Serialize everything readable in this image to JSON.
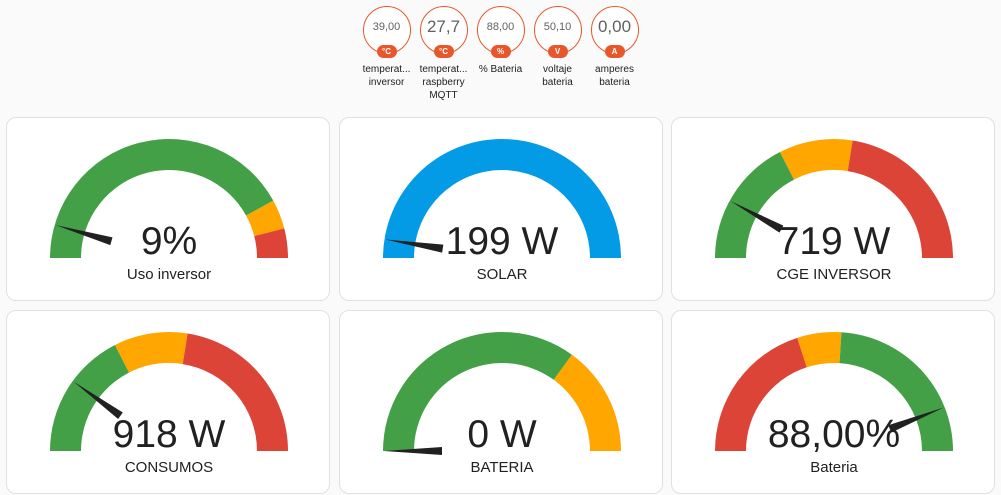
{
  "badges": [
    {
      "value": "39,00",
      "unit": "°C",
      "label": "temperat... inversor",
      "big": false
    },
    {
      "value": "27,7",
      "unit": "°C",
      "label": "temperat... raspberry MQTT",
      "big": true
    },
    {
      "value": "88,00",
      "unit": "%",
      "label": "% Bateria",
      "big": false
    },
    {
      "value": "50,10",
      "unit": "V",
      "label": "voltaje bateria",
      "big": false
    },
    {
      "value": "0,00",
      "unit": "A",
      "label": "amperes bateria",
      "big": true
    }
  ],
  "colors": {
    "green": "#43a047",
    "orange": "#ffa600",
    "red": "#db4437",
    "blue": "#039be5",
    "needle": "#212121",
    "badge_accent": "#e8572c"
  },
  "gauges": [
    {
      "value_text": "9%",
      "name": "Uso inversor",
      "fraction": 0.09,
      "segments": [
        {
          "from": 0,
          "to": 0.84,
          "color": "green"
        },
        {
          "from": 0.84,
          "to": 0.92,
          "color": "orange"
        },
        {
          "from": 0.92,
          "to": 1,
          "color": "red"
        }
      ]
    },
    {
      "value_text": "199 W",
      "name": "SOLAR",
      "fraction": 0.05,
      "segments": [
        {
          "from": 0,
          "to": 1,
          "color": "blue"
        }
      ]
    },
    {
      "value_text": "719 W",
      "name": "CGE INVERSOR",
      "fraction": 0.16,
      "segments": [
        {
          "from": 0,
          "to": 0.35,
          "color": "green"
        },
        {
          "from": 0.35,
          "to": 0.55,
          "color": "orange"
        },
        {
          "from": 0.55,
          "to": 1,
          "color": "red"
        }
      ]
    },
    {
      "value_text": "918 W",
      "name": "CONSUMOS",
      "fraction": 0.2,
      "segments": [
        {
          "from": 0,
          "to": 0.35,
          "color": "green"
        },
        {
          "from": 0.35,
          "to": 0.55,
          "color": "orange"
        },
        {
          "from": 0.55,
          "to": 1,
          "color": "red"
        }
      ]
    },
    {
      "value_text": "0 W",
      "name": "BATERIA",
      "fraction": 0.0,
      "segments": [
        {
          "from": 0,
          "to": 0.7,
          "color": "green"
        },
        {
          "from": 0.7,
          "to": 1,
          "color": "orange"
        }
      ]
    },
    {
      "value_text": "88,00%",
      "name": "Bateria",
      "fraction": 0.88,
      "segments": [
        {
          "from": 0,
          "to": 0.4,
          "color": "red"
        },
        {
          "from": 0.4,
          "to": 0.52,
          "color": "orange"
        },
        {
          "from": 0.52,
          "to": 1,
          "color": "green"
        }
      ]
    }
  ]
}
